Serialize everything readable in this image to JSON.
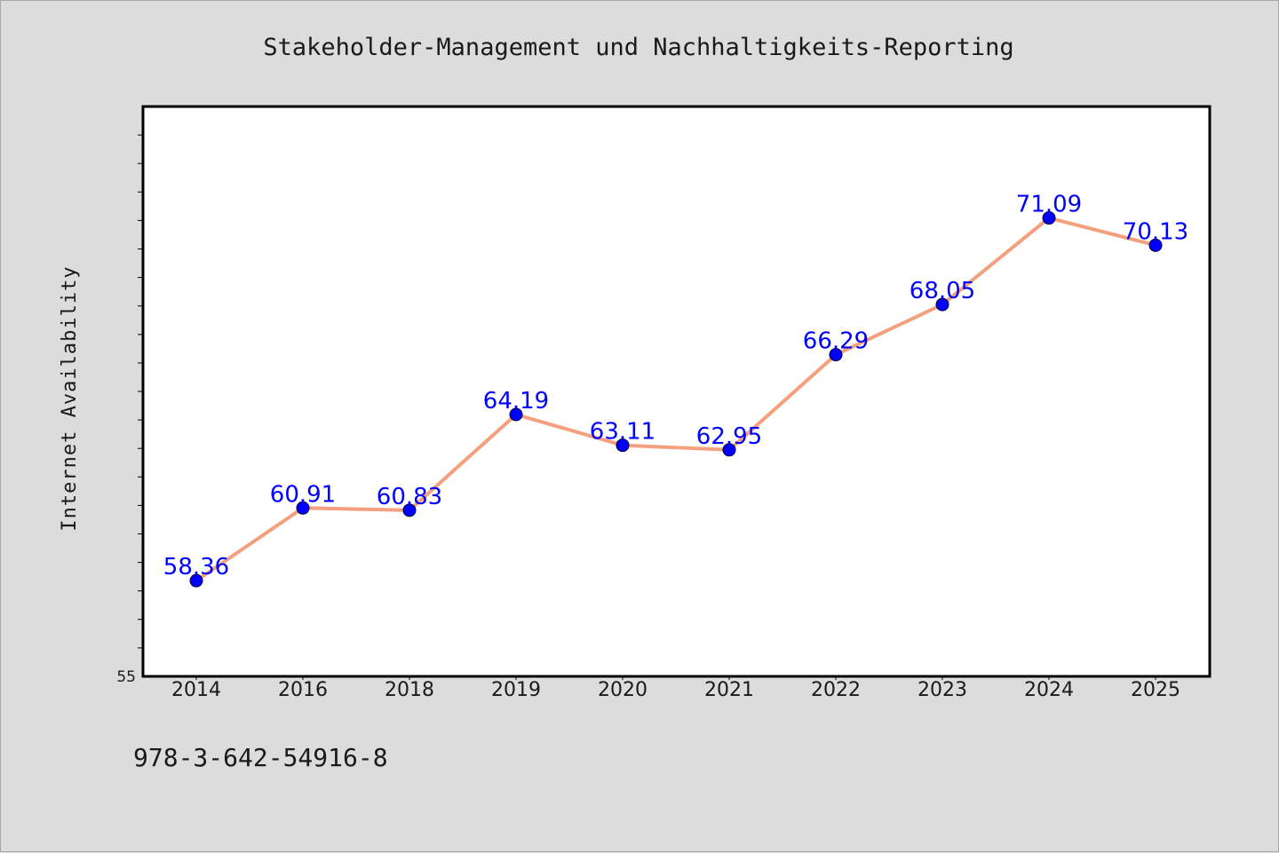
{
  "chart_data": {
    "type": "line",
    "title": "Stakeholder-Management und Nachhaltigkeits-Reporting",
    "xlabel": "",
    "ylabel": "Internet Availability",
    "categories": [
      "2014",
      "2016",
      "2018",
      "2019",
      "2020",
      "2021",
      "2022",
      "2023",
      "2024",
      "2025"
    ],
    "series": [
      {
        "values": [
          58.36,
          60.91,
          60.83,
          64.19,
          63.11,
          62.95,
          66.29,
          68.05,
          71.09,
          70.13
        ],
        "value_labels": [
          "58.36",
          "60.91",
          "60.83",
          "64.19",
          "63.11",
          "62.95",
          "66.29",
          "68.05",
          "71.09",
          "70.13"
        ],
        "line_color": "#f4a07e",
        "marker_color": "#0000ff"
      }
    ],
    "ylim": [
      55,
      75
    ],
    "y_tick_labels": [
      "55"
    ],
    "grid": false,
    "legend": "none"
  },
  "footer": {
    "isbn": "978-3-642-54916-8"
  }
}
